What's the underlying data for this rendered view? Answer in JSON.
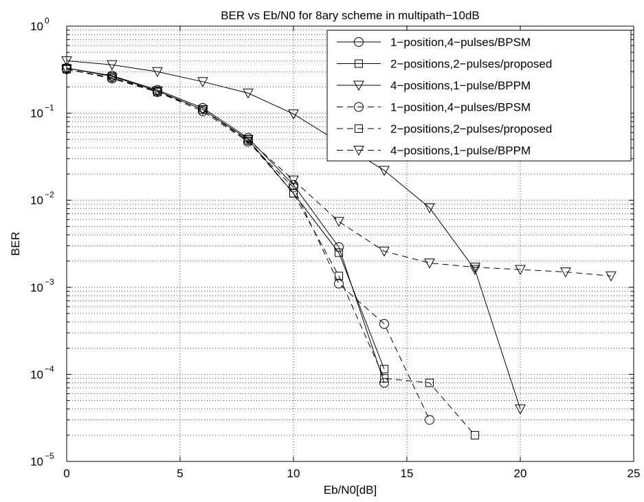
{
  "chart_data": {
    "type": "line",
    "title": "BER vs Eb/N0 for 8ary scheme in multipath−10dB",
    "xlabel": "Eb/N0[dB]",
    "ylabel": "BER",
    "xlim": [
      0,
      25
    ],
    "ylim": [
      1e-05,
      1
    ],
    "yscale": "log",
    "grid": true,
    "legend_position": "top-right",
    "x_ticks": [
      "0",
      "5",
      "10",
      "15",
      "20",
      "25"
    ],
    "y_ticks": [
      {
        "base": "10",
        "exp": "0"
      },
      {
        "base": "10",
        "exp": "−1"
      },
      {
        "base": "10",
        "exp": "−2"
      },
      {
        "base": "10",
        "exp": "−3"
      },
      {
        "base": "10",
        "exp": "−4"
      },
      {
        "base": "10",
        "exp": "−5"
      }
    ],
    "series": [
      {
        "name": "1−position,4−pulses/BPSM",
        "line": "solid",
        "marker": "circle",
        "x": [
          0,
          2,
          4,
          6,
          8,
          10,
          12,
          14
        ],
        "y": [
          0.33,
          0.27,
          0.185,
          0.115,
          0.052,
          0.015,
          0.0029,
          8e-05
        ]
      },
      {
        "name": "2−positions,2−pulses/proposed",
        "line": "solid",
        "marker": "square",
        "x": [
          0,
          2,
          4,
          6,
          8,
          10,
          12,
          14
        ],
        "y": [
          0.33,
          0.265,
          0.18,
          0.11,
          0.05,
          0.012,
          0.0025,
          0.000115
        ]
      },
      {
        "name": "4−positions,1−pulse/BPPM",
        "line": "solid",
        "marker": "triangle",
        "x": [
          0,
          2,
          4,
          6,
          8,
          10,
          14,
          16,
          18,
          20
        ],
        "y": [
          0.4,
          0.36,
          0.3,
          0.23,
          0.17,
          0.098,
          0.022,
          0.0082,
          0.0016,
          4e-05
        ]
      },
      {
        "name": "1−position,4−pulses/BPSM",
        "line": "dashed",
        "marker": "circle",
        "x": [
          0,
          2,
          4,
          6,
          8,
          10,
          12,
          14,
          16
        ],
        "y": [
          0.32,
          0.25,
          0.175,
          0.105,
          0.047,
          0.014,
          0.0011,
          0.00038,
          3e-05
        ]
      },
      {
        "name": "2−positions,2−pulses/proposed",
        "line": "dashed",
        "marker": "square",
        "x": [
          0,
          2,
          4,
          6,
          8,
          10,
          12,
          14,
          16,
          18
        ],
        "y": [
          0.32,
          0.255,
          0.175,
          0.11,
          0.048,
          0.012,
          0.00135,
          9e-05,
          8e-05,
          2e-05
        ]
      },
      {
        "name": "4−positions,1−pulse/BPPM",
        "line": "dashed",
        "marker": "triangle",
        "x": [
          0,
          2,
          4,
          6,
          8,
          10,
          12,
          14,
          16,
          18,
          20,
          22,
          24
        ],
        "y": [
          0.32,
          0.255,
          0.18,
          0.11,
          0.05,
          0.017,
          0.0057,
          0.0026,
          0.0019,
          0.0017,
          0.0016,
          0.0015,
          0.00135
        ]
      }
    ]
  }
}
